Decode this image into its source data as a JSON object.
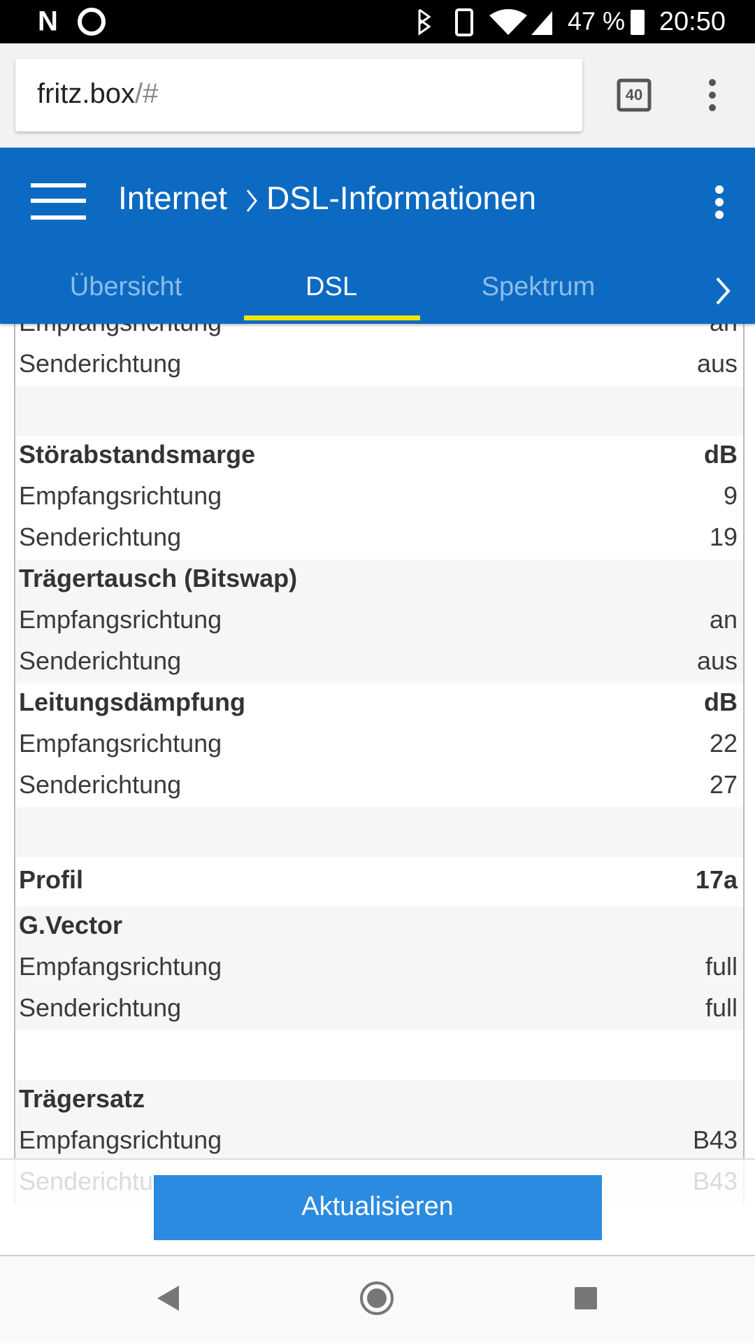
{
  "status_bar": {
    "battery": "47 %",
    "time": "20:50"
  },
  "browser": {
    "host": "fritz.box",
    "path": "/#",
    "tab_count": "40"
  },
  "header": {
    "section": "Internet",
    "page": "DSL-Informationen",
    "tabs": [
      "Übersicht",
      "DSL",
      "Spektrum"
    ]
  },
  "table": {
    "groups": [
      {
        "rows": [
          {
            "label": "Empfangsrichtung",
            "value": "an"
          },
          {
            "label": "Senderichtung",
            "value": "aus"
          }
        ]
      },
      {
        "title": "Störabstandsmarge",
        "unit": "dB",
        "rows": [
          {
            "label": "Empfangsrichtung",
            "value": "9"
          },
          {
            "label": "Senderichtung",
            "value": "19"
          }
        ]
      },
      {
        "title": "Trägertausch (Bitswap)",
        "rows": [
          {
            "label": "Empfangsrichtung",
            "value": "an"
          },
          {
            "label": "Senderichtung",
            "value": "aus"
          }
        ]
      },
      {
        "title": "Leitungsdämpfung",
        "unit": "dB",
        "rows": [
          {
            "label": "Empfangsrichtung",
            "value": "22"
          },
          {
            "label": "Senderichtung",
            "value": "27"
          }
        ]
      },
      {
        "title": "Profil",
        "unit": "17a"
      },
      {
        "title": "G.Vector",
        "rows": [
          {
            "label": "Empfangsrichtung",
            "value": "full"
          },
          {
            "label": "Senderichtung",
            "value": "full"
          }
        ]
      },
      {
        "title": "Trägersatz",
        "rows": [
          {
            "label": "Empfangsrichtung",
            "value": "B43"
          },
          {
            "label": "Senderichtung",
            "value": "B43"
          }
        ]
      }
    ]
  },
  "button": "Aktualisieren"
}
